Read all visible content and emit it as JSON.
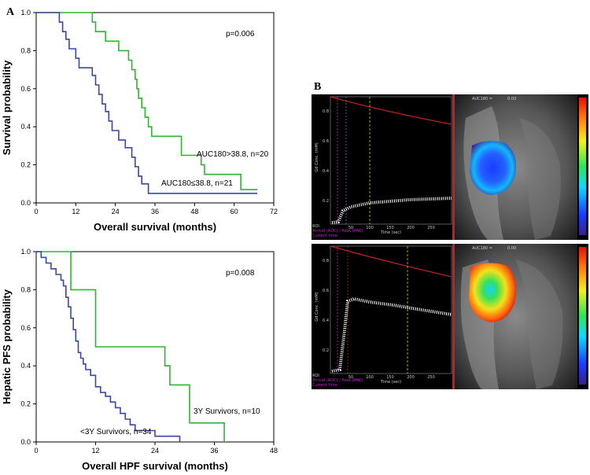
{
  "panel_labels": {
    "a": "A",
    "b": "B"
  },
  "colors": {
    "green": "#2fb52f",
    "blue": "#3b47a6",
    "axis": "#000000"
  },
  "chart_data": [
    {
      "type": "line",
      "step": true,
      "xlabel": "Overall survival (months)",
      "ylabel": "Survival probability",
      "xlim": [
        0,
        72
      ],
      "ylim": [
        0,
        1.0
      ],
      "xticks": [
        "0",
        "12",
        "24",
        "36",
        "48",
        "60",
        "72"
      ],
      "yticks": [
        "0.0",
        "0.2",
        "0.4",
        "0.6",
        "0.8",
        "1.0"
      ],
      "annotations": {
        "pvalue": "p=0.006"
      },
      "series": [
        {
          "name": "AUC180>38.8, n=20",
          "color": "#2fb52f",
          "x": [
            0,
            14,
            17,
            18,
            21,
            25,
            28,
            29,
            30,
            30.5,
            31,
            32,
            33,
            34,
            35,
            40,
            44,
            50,
            51,
            61,
            62,
            67
          ],
          "y": [
            1.0,
            1.0,
            0.95,
            0.9,
            0.85,
            0.8,
            0.75,
            0.7,
            0.65,
            0.6,
            0.55,
            0.5,
            0.45,
            0.4,
            0.35,
            0.35,
            0.25,
            0.2,
            0.15,
            0.15,
            0.07,
            0.07
          ]
        },
        {
          "name": "AUC180≤38.8, n=21",
          "color": "#3b47a6",
          "x": [
            0,
            6,
            7,
            8,
            9,
            10,
            12,
            13,
            16,
            17,
            18,
            19,
            20,
            21,
            22,
            23,
            25,
            27,
            29,
            30,
            31,
            32,
            34,
            35,
            67
          ],
          "y": [
            1.0,
            1.0,
            0.95,
            0.9,
            0.86,
            0.81,
            0.76,
            0.71,
            0.71,
            0.67,
            0.62,
            0.57,
            0.52,
            0.48,
            0.43,
            0.38,
            0.33,
            0.29,
            0.24,
            0.19,
            0.14,
            0.1,
            0.05,
            0.05,
            0.05
          ]
        }
      ]
    },
    {
      "type": "line",
      "step": true,
      "xlabel": "Overall HPF survival (months)",
      "ylabel": "Hepatic PFS probability",
      "xlim": [
        0,
        48
      ],
      "ylim": [
        0,
        1.0
      ],
      "xticks": [
        "0",
        "12",
        "24",
        "36",
        "48"
      ],
      "yticks": [
        "0.0",
        "0.2",
        "0.4",
        "0.6",
        "0.8",
        "1.0"
      ],
      "annotations": {
        "pvalue": "p=0.008"
      },
      "series": [
        {
          "name": "3Y Survivors, n=10",
          "color": "#2fb52f",
          "x": [
            0,
            5,
            7,
            11,
            12,
            24,
            26,
            27,
            30,
            31,
            38,
            38
          ],
          "y": [
            1.0,
            1.0,
            0.8,
            0.8,
            0.5,
            0.5,
            0.4,
            0.3,
            0.3,
            0.1,
            0.1,
            0.0
          ]
        },
        {
          "name": "<3Y Survivors, n=34",
          "color": "#3b47a6",
          "x": [
            0,
            1,
            2,
            3,
            4,
            5,
            5.5,
            6,
            6.5,
            7,
            7.5,
            8,
            8.5,
            9,
            9.5,
            10,
            11,
            12,
            13,
            14,
            15,
            16,
            17,
            18,
            19,
            20,
            21,
            22,
            24,
            26,
            29
          ],
          "y": [
            1.0,
            0.97,
            0.94,
            0.91,
            0.88,
            0.85,
            0.82,
            0.76,
            0.71,
            0.65,
            0.59,
            0.53,
            0.47,
            0.44,
            0.41,
            0.38,
            0.35,
            0.29,
            0.26,
            0.24,
            0.21,
            0.18,
            0.15,
            0.12,
            0.09,
            0.06,
            0.06,
            0.06,
            0.03,
            0.03,
            0.0
          ]
        }
      ]
    }
  ],
  "mri": {
    "top": {
      "ylabel": "Gd Conc. (mM)",
      "xlabel": "Time (sec)",
      "header": "AUC180 =",
      "header_value": "0.00",
      "roi_label": "ROI",
      "arrival_label": "Arrival (ADC) / Peak (PAK)",
      "current_label": "Current time",
      "xticks": [
        "50",
        "100",
        "150",
        "200",
        "250"
      ],
      "yticks": [
        "0.2",
        "0.4",
        "0.6",
        "0.8"
      ]
    },
    "bottom": {
      "ylabel": "Gd Conc. (mM)",
      "xlabel": "Time (sec)",
      "header": "AUC180 =",
      "header_value": "0.00",
      "roi_label": "ROI",
      "arrival_label": "Arrival (ADC) / Peak (PAK)",
      "current_label": "Current time",
      "xticks": [
        "50",
        "100",
        "150",
        "200",
        "250"
      ],
      "yticks": [
        "0.2",
        "0.4",
        "0.6",
        "0.8"
      ]
    }
  }
}
